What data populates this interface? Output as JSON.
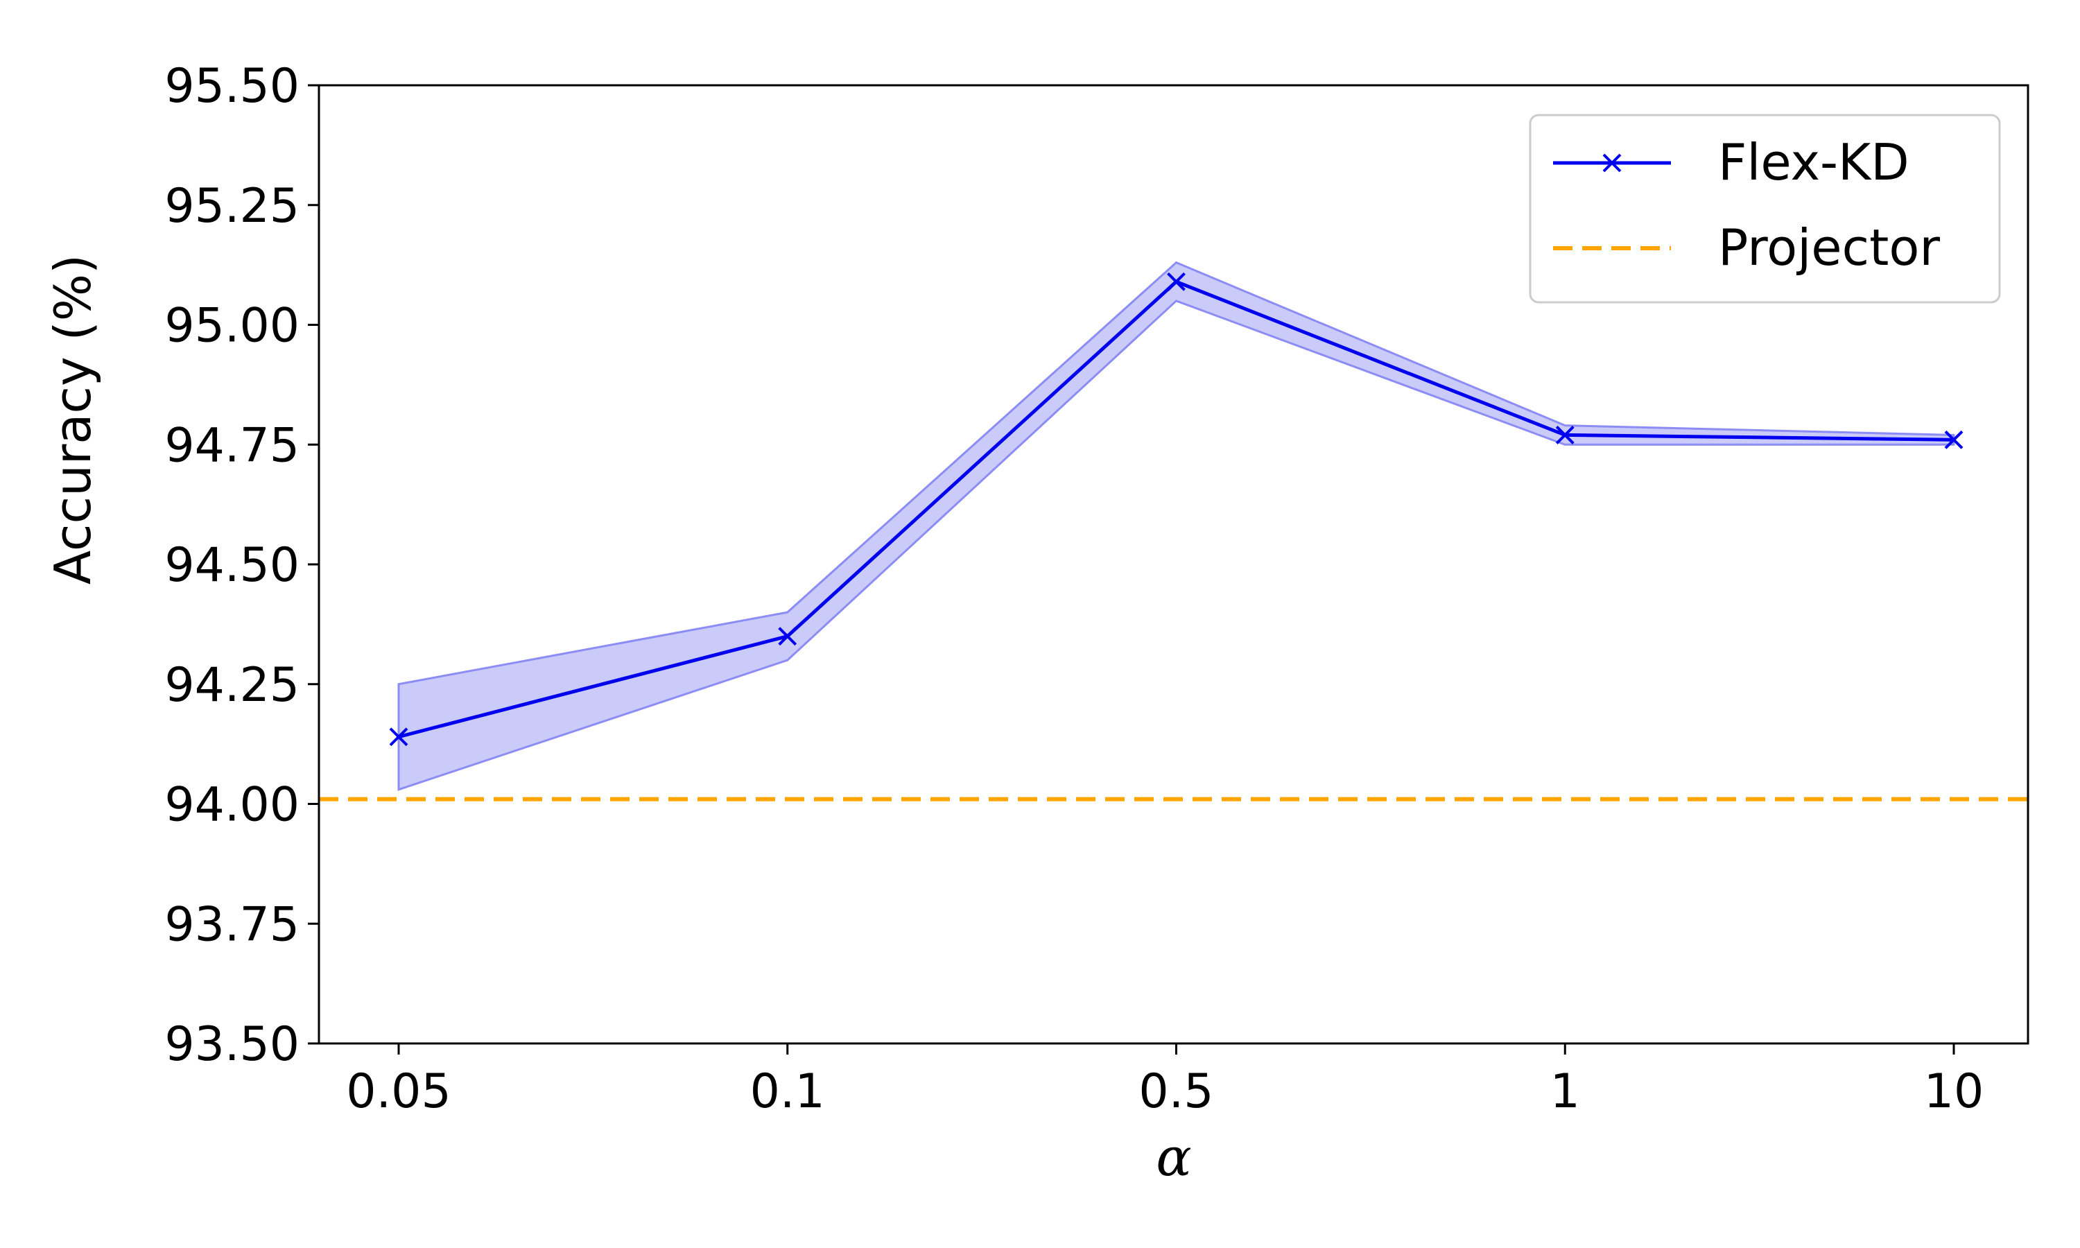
{
  "chart_data": {
    "type": "line",
    "title": "",
    "xlabel": "α",
    "ylabel": "Accuracy (%)",
    "x_categories": [
      "0.05",
      "0.1",
      "0.5",
      "1",
      "10"
    ],
    "y_ticks": [
      "93.50",
      "93.75",
      "94.00",
      "94.25",
      "94.50",
      "94.75",
      "95.00",
      "95.25",
      "95.50"
    ],
    "ylim": [
      93.5,
      95.5
    ],
    "grid": false,
    "legend_position": "top-right",
    "series": [
      {
        "name": "Flex-KD",
        "style": "solid-line-x-marker",
        "color": "#0000ee",
        "values": [
          94.14,
          94.35,
          95.09,
          94.77,
          94.76
        ],
        "band_upper": [
          94.25,
          94.4,
          95.13,
          94.79,
          94.77
        ],
        "band_lower": [
          94.03,
          94.3,
          95.05,
          94.75,
          94.75
        ],
        "band_color": "#8c8cf5"
      },
      {
        "name": "Projector",
        "style": "dashed-horizontal-line",
        "color": "#ffa500",
        "value": 94.01
      }
    ]
  }
}
